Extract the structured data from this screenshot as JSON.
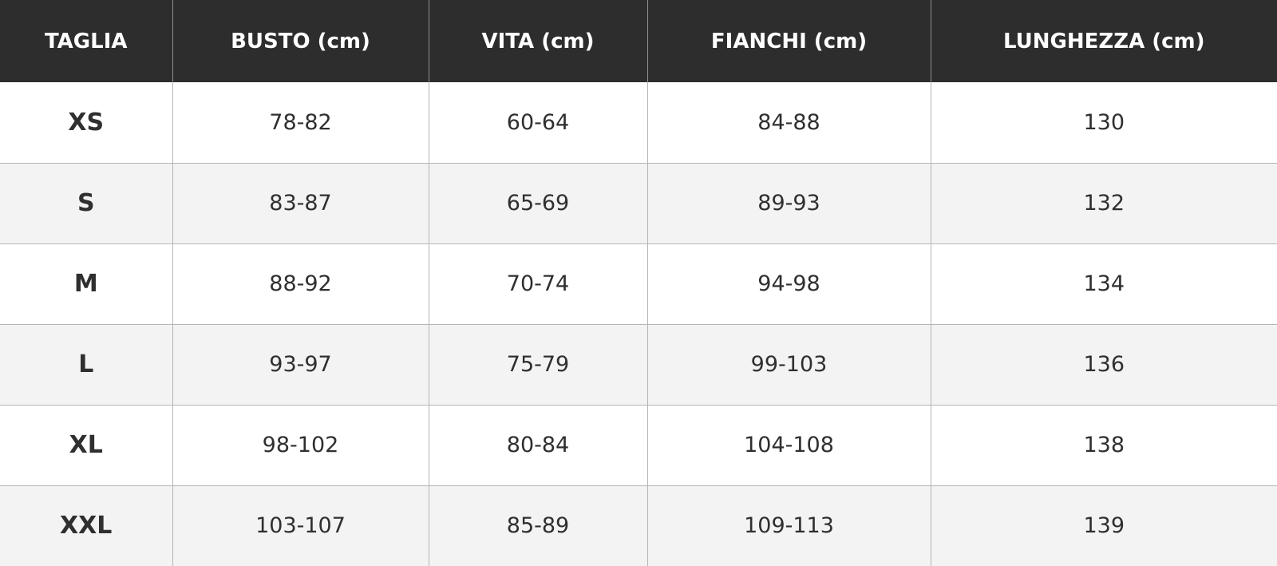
{
  "table": {
    "headers": [
      "TAGLIA",
      "BUSTO (cm)",
      "VITA (cm)",
      "FIANCHI (cm)",
      "LUNGHEZZA (cm)"
    ],
    "rows": [
      [
        "XS",
        "78-82",
        "60-64",
        "84-88",
        "130"
      ],
      [
        "S",
        "83-87",
        "65-69",
        "89-93",
        "132"
      ],
      [
        "M",
        "88-92",
        "70-74",
        "94-98",
        "134"
      ],
      [
        "L",
        "93-97",
        "75-79",
        "99-103",
        "136"
      ],
      [
        "XL",
        "98-102",
        "80-84",
        "104-108",
        "138"
      ],
      [
        "XXL",
        "103-107",
        "85-89",
        "109-113",
        "139"
      ]
    ]
  },
  "colors": {
    "header_background": "#2d2d2d",
    "header_text": "#ffffff",
    "row_alt_background": "#f3f3f3",
    "body_text": "#2f2f2f",
    "grid_line": "#b5b5b5"
  }
}
